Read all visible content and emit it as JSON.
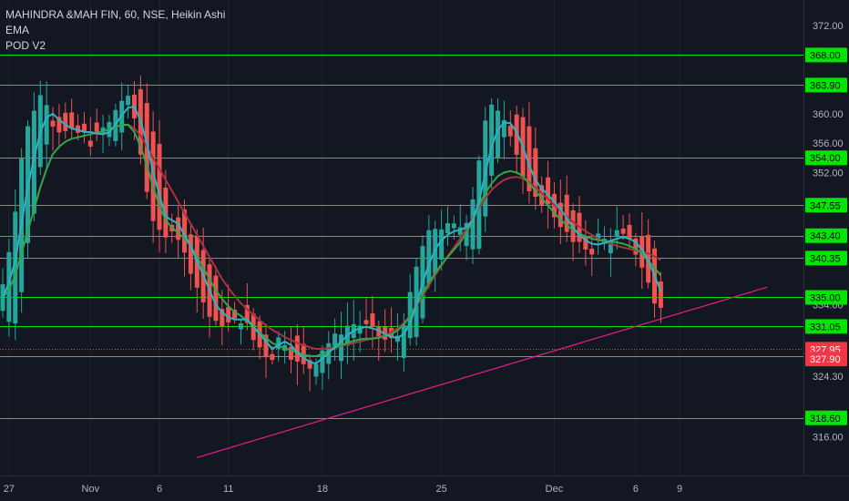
{
  "legend": {
    "symbol_line": "MAHINDRA &MAH FIN, 60, NSE, Heikin Ashi",
    "indicator_1": "EMA",
    "indicator_2": "POD V2"
  },
  "colors": {
    "background": "#131722",
    "up_candle": "#26a69a",
    "down_candle": "#ef5350",
    "level_line": "#00e600",
    "level_badge": "#00e600",
    "trendline": "#e91e8c",
    "ema_fast": "#2bb3c6",
    "ema_mid": "#2ea84a",
    "ema_slow": "#a8323f",
    "current_price_badge": "#f23645",
    "axis_text": "#b2b5be"
  },
  "chart_data": {
    "type": "candlestick",
    "style": "Heikin Ashi",
    "symbol": "MAHINDRA &MAH FIN",
    "interval": "60",
    "exchange": "NSE",
    "ylim": [
      312,
      373
    ],
    "y_ticks": [
      "372.00",
      "360.00",
      "356.00",
      "352.00",
      "334.00",
      "324.30",
      "316.00"
    ],
    "x_ticks": [
      {
        "label": "27",
        "bar": 1
      },
      {
        "label": "Nov",
        "bar": 14
      },
      {
        "label": "6",
        "bar": 25
      },
      {
        "label": "11",
        "bar": 36
      },
      {
        "label": "18",
        "bar": 51
      },
      {
        "label": "25",
        "bar": 70
      },
      {
        "label": "Dec",
        "bar": 88
      },
      {
        "label": "6",
        "bar": 101
      },
      {
        "label": "9",
        "bar": 108
      }
    ],
    "horizontal_levels": [
      "368.00",
      "363.90",
      "354.00",
      "347.55",
      "343.40",
      "340.35",
      "335.00",
      "331.05",
      "327.00",
      "318.60"
    ],
    "current_price": "327.95",
    "price_label_2": "327.90",
    "trendline": {
      "start": {
        "bar": 31,
        "price": 313.2
      },
      "end": {
        "bar": 122,
        "price": 336.4
      }
    },
    "ema_fast": [
      335,
      337,
      340,
      345,
      350,
      354,
      357.5,
      359.5,
      360,
      359.2,
      358.5,
      358,
      357.8,
      357.5,
      357.5,
      357.3,
      357.2,
      357.5,
      358.5,
      359.8,
      360.8,
      361,
      359,
      356,
      352,
      349,
      346,
      345.5,
      345,
      343.5,
      342,
      340,
      338,
      336,
      334,
      333,
      332.3,
      332,
      332,
      332,
      331,
      330,
      329,
      328,
      328.5,
      329,
      328.5,
      327.5,
      326.8,
      326.2,
      326,
      326.7,
      327.5,
      328.2,
      329,
      329.8,
      330.5,
      330.8,
      331,
      330.8,
      330.5,
      330,
      329.6,
      329.5,
      330,
      331.5,
      334,
      337,
      339.5,
      341.5,
      342.8,
      343.5,
      344,
      344.2,
      344.5,
      345.5,
      348,
      352,
      355.5,
      357.8,
      358.8,
      358.7,
      357.5,
      355.5,
      353,
      351,
      349.8,
      349,
      348,
      347,
      345.8,
      344.5,
      343.5,
      342.8,
      342.3,
      342.2,
      342.4,
      342.7,
      343,
      343.2,
      343,
      342.5,
      341.5,
      340,
      338,
      335.8
    ],
    "ema_mid": [
      335,
      336,
      338,
      341,
      344,
      347,
      350,
      352.5,
      354.5,
      355.5,
      356.2,
      356.6,
      356.8,
      357,
      357.2,
      357.4,
      357.6,
      357.9,
      358.2,
      358.5,
      358.5,
      357.5,
      355.5,
      353,
      350,
      347.5,
      345.5,
      344.5,
      343.8,
      343,
      342,
      340.5,
      339,
      337.5,
      336,
      334.8,
      333.8,
      333,
      332.5,
      331.8,
      331,
      330.2,
      329.5,
      328.8,
      328.4,
      328.1,
      327.8,
      327.5,
      327.2,
      327,
      327,
      327.3,
      327.7,
      328.1,
      328.5,
      328.8,
      329.1,
      329.3,
      329.4,
      329.4,
      329.5,
      329.7,
      330,
      330.5,
      331.3,
      332.5,
      334,
      335.5,
      337,
      338.3,
      339.5,
      340.5,
      341.5,
      342.5,
      343.8,
      345.5,
      347.5,
      349.2,
      350.5,
      351.5,
      352,
      352.2,
      352,
      351.5,
      350.5,
      349.5,
      348.5,
      347.5,
      346.5,
      345.6,
      344.8,
      344.2,
      343.7,
      343.3,
      343,
      342.8,
      342.7,
      342.6,
      342.5,
      342.3,
      342,
      341.6,
      341,
      340,
      339,
      338
    ],
    "ema_slow": [
      null,
      null,
      null,
      null,
      null,
      null,
      null,
      null,
      null,
      null,
      null,
      null,
      null,
      null,
      null,
      null,
      null,
      null,
      null,
      null,
      358.5,
      358,
      357,
      355.5,
      354,
      352.5,
      351,
      349.5,
      348,
      346.5,
      345,
      343.5,
      342,
      340.5,
      339,
      337.5,
      336.3,
      335.2,
      334.2,
      333.4,
      332.6,
      331.9,
      331.2,
      330.6,
      330.1,
      329.6,
      329.2,
      328.8,
      328.5,
      328.2,
      328,
      328,
      328.1,
      328.2,
      328.4,
      328.6,
      328.8,
      329,
      329.2,
      329.4,
      329.6,
      329.9,
      330.3,
      330.8,
      331.5,
      332.5,
      333.8,
      335.2,
      336.6,
      338,
      339.3,
      340.6,
      341.8,
      343,
      344.4,
      345.8,
      347.2,
      348.5,
      349.6,
      350.4,
      351,
      351.3,
      351.4,
      351.2,
      350.7,
      350,
      349.2,
      348.4,
      347.6,
      346.8,
      346,
      345.3,
      344.6,
      344,
      343.5,
      343,
      342.6,
      342.3,
      342,
      341.8,
      341.6,
      341.4,
      341.2,
      341,
      340.6,
      340.1
    ]
  }
}
